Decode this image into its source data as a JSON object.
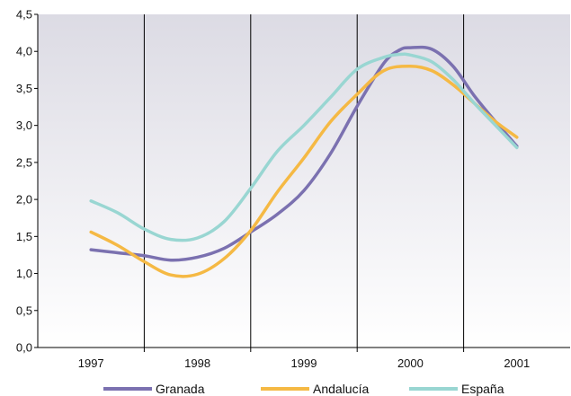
{
  "chart_data": {
    "type": "line",
    "title": "",
    "xlabel": "",
    "ylabel": "",
    "x_categories": [
      "1997",
      "1998",
      "1999",
      "2000",
      "2001"
    ],
    "x_range": [
      1996.5,
      2001.5
    ],
    "ylim": [
      0,
      4.5
    ],
    "y_ticks": [
      "0,0",
      "0,5",
      "1,0",
      "1,5",
      "2,0",
      "2,5",
      "3,0",
      "3,5",
      "4,0",
      "4,5"
    ],
    "grid": "vertical lines at year boundaries",
    "legend_position": "bottom",
    "background": "grey-to-white vertical gradient",
    "series": [
      {
        "name": "Granada",
        "color": "#7b71b0",
        "points": [
          [
            1997.0,
            1.32
          ],
          [
            1997.25,
            1.28
          ],
          [
            1997.5,
            1.24
          ],
          [
            1997.75,
            1.18
          ],
          [
            1998.0,
            1.22
          ],
          [
            1998.25,
            1.34
          ],
          [
            1998.5,
            1.56
          ],
          [
            1998.75,
            1.8
          ],
          [
            1999.0,
            2.12
          ],
          [
            1999.25,
            2.62
          ],
          [
            1999.5,
            3.26
          ],
          [
            1999.75,
            3.84
          ],
          [
            1999.9,
            4.02
          ],
          [
            2000.0,
            4.05
          ],
          [
            2000.2,
            4.03
          ],
          [
            2000.4,
            3.8
          ],
          [
            2000.6,
            3.4
          ],
          [
            2000.8,
            3.05
          ],
          [
            2001.0,
            2.72
          ]
        ]
      },
      {
        "name": "Andalucía",
        "color": "#f5b944",
        "points": [
          [
            1997.0,
            1.56
          ],
          [
            1997.25,
            1.38
          ],
          [
            1997.5,
            1.16
          ],
          [
            1997.75,
            0.98
          ],
          [
            1998.0,
            0.99
          ],
          [
            1998.25,
            1.2
          ],
          [
            1998.5,
            1.58
          ],
          [
            1998.75,
            2.1
          ],
          [
            1999.0,
            2.56
          ],
          [
            1999.25,
            3.05
          ],
          [
            1999.5,
            3.42
          ],
          [
            1999.75,
            3.74
          ],
          [
            2000.0,
            3.8
          ],
          [
            2000.2,
            3.74
          ],
          [
            2000.4,
            3.55
          ],
          [
            2000.6,
            3.3
          ],
          [
            2000.8,
            3.05
          ],
          [
            2001.0,
            2.84
          ]
        ]
      },
      {
        "name": "España",
        "color": "#99d6d2",
        "points": [
          [
            1997.0,
            1.98
          ],
          [
            1997.25,
            1.82
          ],
          [
            1997.5,
            1.6
          ],
          [
            1997.75,
            1.46
          ],
          [
            1998.0,
            1.48
          ],
          [
            1998.25,
            1.7
          ],
          [
            1998.5,
            2.15
          ],
          [
            1998.75,
            2.65
          ],
          [
            1999.0,
            3.0
          ],
          [
            1999.25,
            3.38
          ],
          [
            1999.5,
            3.76
          ],
          [
            1999.75,
            3.92
          ],
          [
            1999.9,
            3.96
          ],
          [
            2000.0,
            3.95
          ],
          [
            2000.2,
            3.86
          ],
          [
            2000.4,
            3.62
          ],
          [
            2000.6,
            3.3
          ],
          [
            2000.8,
            3.0
          ],
          [
            2001.0,
            2.7
          ]
        ]
      }
    ]
  }
}
